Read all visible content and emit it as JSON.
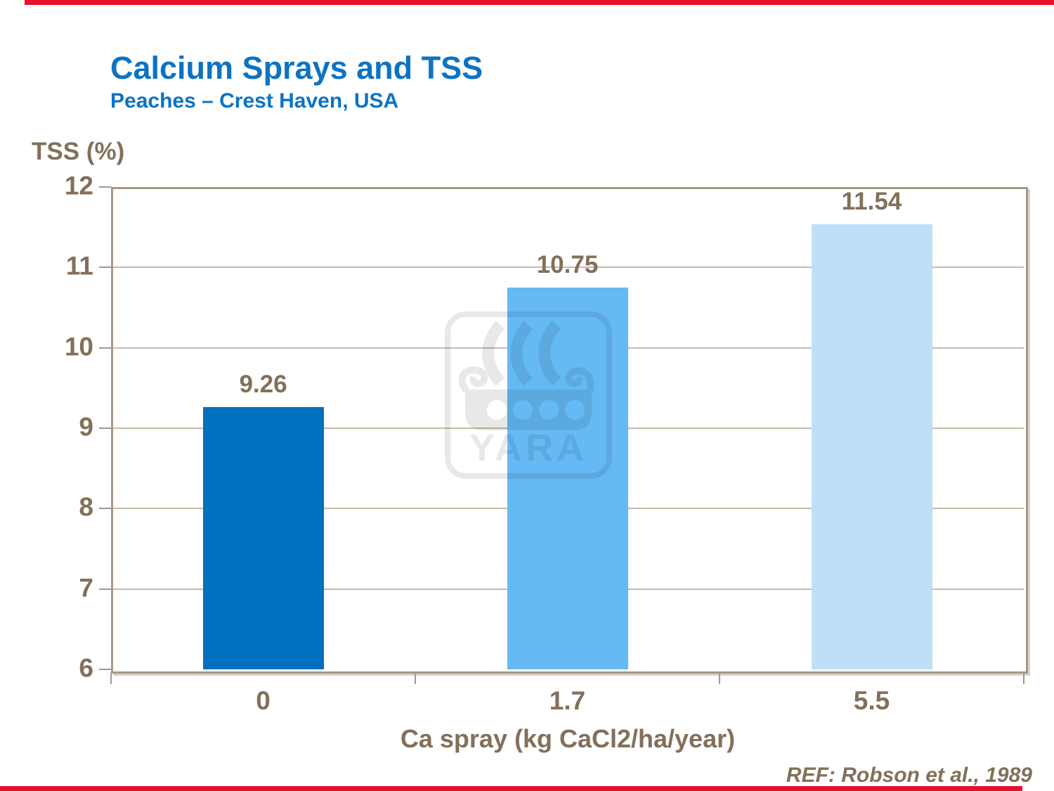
{
  "header": {
    "title": "Calcium Sprays and TSS",
    "subtitle": "Peaches – Crest Haven, USA"
  },
  "footer": {
    "reference": "REF: Robson et al., 1989"
  },
  "watermark": {
    "brand_text": "YARA"
  },
  "colors": {
    "title_blue": "#0c73c4",
    "text_brown": "#82705a",
    "gridline": "#c6baa9",
    "axis_border": "#a5988a",
    "accent_red": "#e8112d",
    "bar_colors": [
      "#0070c0",
      "#65baf4",
      "#bedff8"
    ]
  },
  "chart_data": {
    "type": "bar",
    "title": "Calcium Sprays and TSS",
    "subtitle": "Peaches – Crest Haven, USA",
    "categories": [
      "0",
      "1.7",
      "5.5"
    ],
    "values": [
      9.26,
      10.75,
      11.54
    ],
    "value_labels": [
      "9.26",
      "10.75",
      "11.54"
    ],
    "series_colors": [
      "#0070c0",
      "#65baf4",
      "#bedff8"
    ],
    "xlabel": "Ca spray (kg CaCl2/ha/year)",
    "ylabel": "TSS (%)",
    "ylim": [
      6,
      12
    ],
    "ytick_step": 1,
    "yticks": [
      6,
      7,
      8,
      9,
      10,
      11,
      12
    ],
    "grid": true,
    "legend": false,
    "annotation": "REF: Robson et al., 1989"
  }
}
